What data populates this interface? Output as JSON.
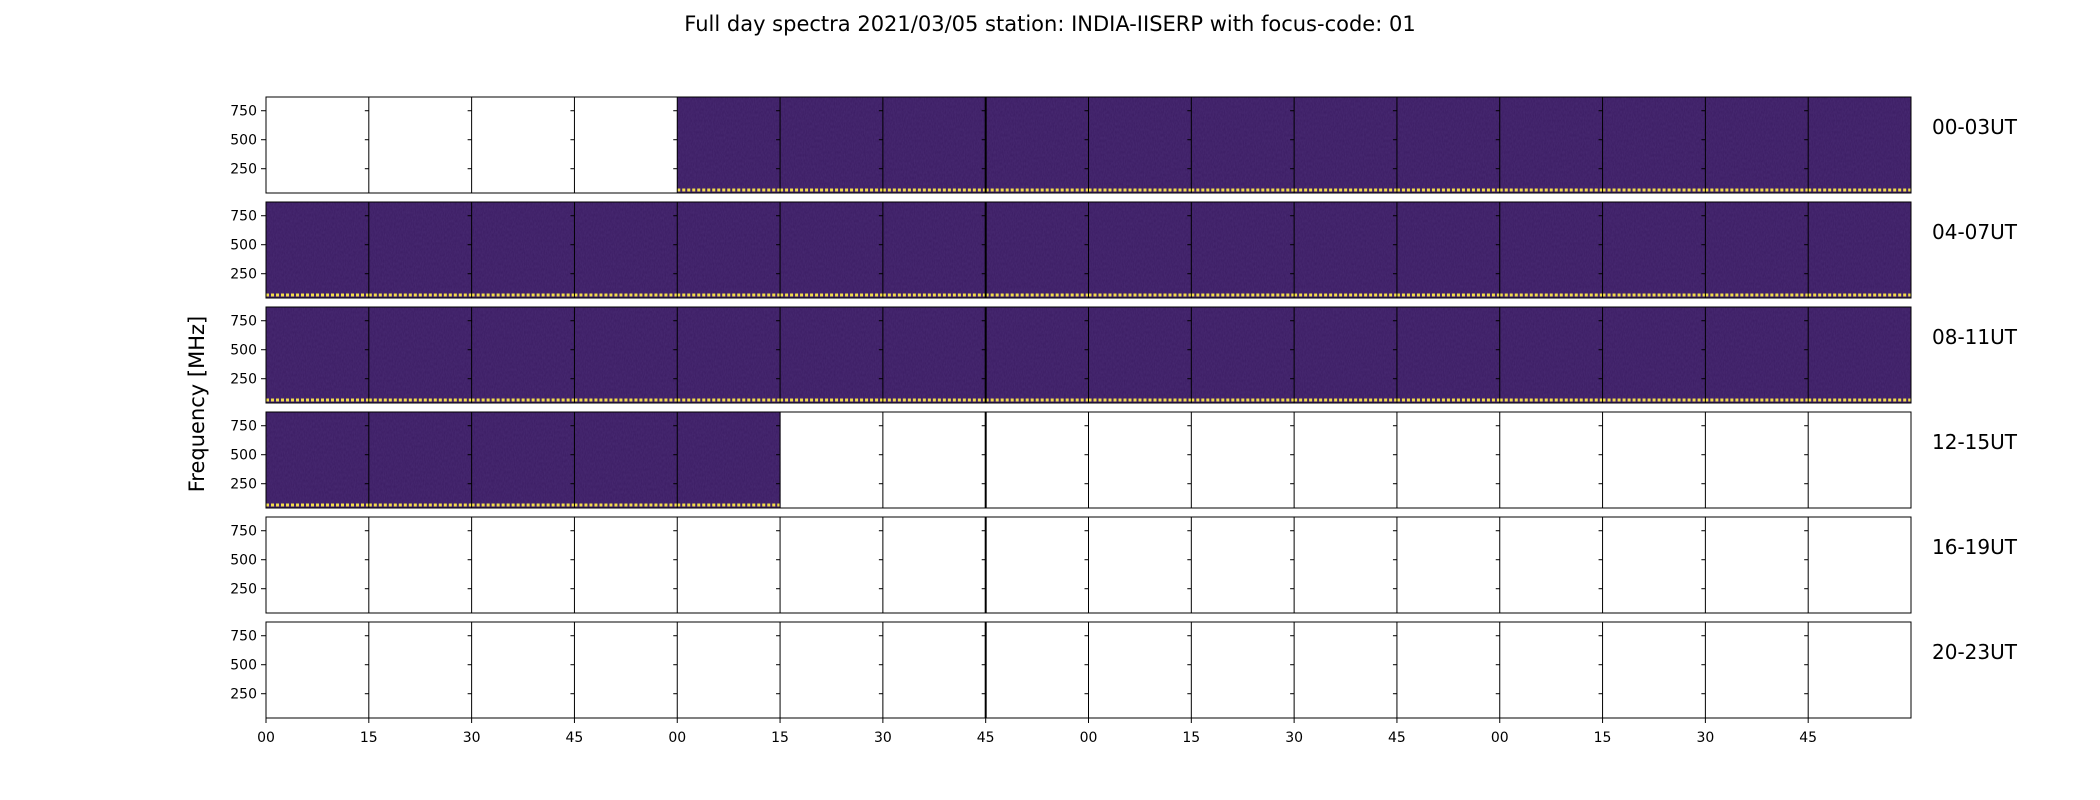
{
  "chart_data": {
    "type": "heatmap",
    "title": "Full day spectra 2021/03/05 station: INDIA-IISERP with focus-code: 01",
    "xlabel": "",
    "ylabel": "Frequency [MHz]",
    "y_ticks": [
      "750",
      "500",
      "250"
    ],
    "x_ticks": [
      "00",
      "15",
      "30",
      "45",
      "00",
      "15",
      "30",
      "45",
      "00",
      "15",
      "30",
      "45",
      "00",
      "15",
      "30",
      "45"
    ],
    "segment_minutes": 15,
    "rows": [
      {
        "label": "00-03UT",
        "data_segments": [
          0,
          0,
          0,
          0,
          1,
          1,
          1,
          1,
          1,
          1,
          1,
          1,
          1,
          1,
          1,
          1
        ]
      },
      {
        "label": "04-07UT",
        "data_segments": [
          1,
          1,
          1,
          1,
          1,
          1,
          1,
          1,
          1,
          1,
          1,
          1,
          1,
          1,
          1,
          1
        ]
      },
      {
        "label": "08-11UT",
        "data_segments": [
          1,
          1,
          1,
          1,
          1,
          1,
          1,
          1,
          1,
          1,
          1,
          1,
          1,
          1,
          1,
          1
        ]
      },
      {
        "label": "12-15UT",
        "data_segments": [
          1,
          1,
          1,
          1,
          1,
          0,
          0,
          0,
          0,
          0,
          0,
          0,
          0,
          0,
          0,
          0
        ]
      },
      {
        "label": "16-19UT",
        "data_segments": [
          0,
          0,
          0,
          0,
          0,
          0,
          0,
          0,
          0,
          0,
          0,
          0,
          0,
          0,
          0,
          0
        ]
      },
      {
        "label": "20-23UT",
        "data_segments": [
          0,
          0,
          0,
          0,
          0,
          0,
          0,
          0,
          0,
          0,
          0,
          0,
          0,
          0,
          0,
          0
        ]
      }
    ],
    "colormap": "viridis",
    "colors": {
      "background": "#3b1c63",
      "low_band": "#f2dd4a",
      "frame": "#000000"
    }
  }
}
